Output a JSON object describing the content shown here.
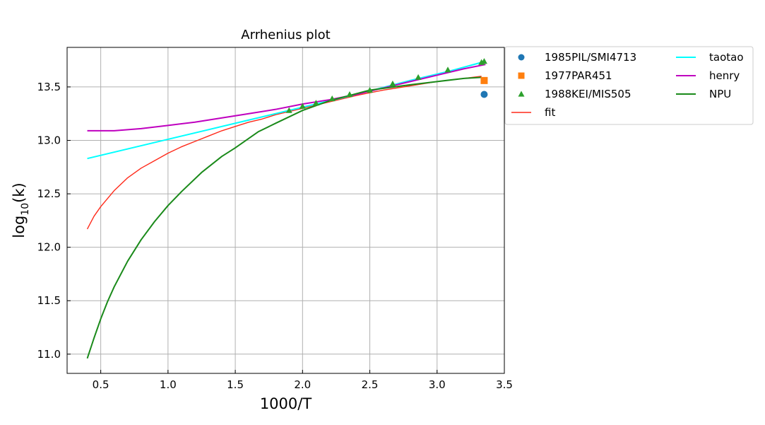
{
  "chart_data": {
    "type": "line",
    "title": "Arrhenius plot",
    "xlabel": "1000/T",
    "ylabel_base": "log",
    "ylabel_sub": "10",
    "ylabel_rest": "(k)",
    "xlim": [
      0.25,
      3.5
    ],
    "ylim": [
      10.82,
      13.87
    ],
    "xticks": [
      0.5,
      1.0,
      1.5,
      2.0,
      2.5,
      3.0,
      3.5
    ],
    "xtick_labels": [
      "0.5",
      "1.0",
      "1.5",
      "2.0",
      "2.5",
      "3.0",
      "3.5"
    ],
    "yticks": [
      11.0,
      11.5,
      12.0,
      12.5,
      13.0,
      13.5
    ],
    "ytick_labels": [
      "11.0",
      "11.5",
      "12.0",
      "12.5",
      "13.0",
      "13.5"
    ],
    "grid": true,
    "legend_placement": "outside-right-top",
    "scatter_series": [
      {
        "name": "1985PIL/SMI4713",
        "marker": "circle",
        "color": "#1f77b4",
        "points": [
          [
            3.35,
            13.43
          ]
        ]
      },
      {
        "name": "1977PAR451",
        "marker": "square",
        "color": "#ff7f0e",
        "points": [
          [
            3.35,
            13.56
          ]
        ]
      },
      {
        "name": "1988KEI/MIS505",
        "marker": "triangle",
        "color": "#2ca02c",
        "points": [
          [
            1.9,
            13.28
          ],
          [
            2.0,
            13.32
          ],
          [
            2.1,
            13.35
          ],
          [
            2.22,
            13.39
          ],
          [
            2.35,
            13.43
          ],
          [
            2.5,
            13.47
          ],
          [
            2.67,
            13.53
          ],
          [
            2.86,
            13.59
          ],
          [
            3.08,
            13.66
          ],
          [
            3.33,
            13.73
          ],
          [
            3.35,
            13.74
          ]
        ]
      }
    ],
    "line_series": [
      {
        "name": "fit",
        "color": "#ff2a1a",
        "width": 1.4,
        "points": [
          [
            0.4,
            12.17
          ],
          [
            0.45,
            12.29
          ],
          [
            0.5,
            12.38
          ],
          [
            0.6,
            12.53
          ],
          [
            0.7,
            12.65
          ],
          [
            0.8,
            12.74
          ],
          [
            0.9,
            12.81
          ],
          [
            1.0,
            12.88
          ],
          [
            1.1,
            12.94
          ],
          [
            1.2,
            12.99
          ],
          [
            1.3,
            13.04
          ],
          [
            1.4,
            13.09
          ],
          [
            1.5,
            13.13
          ],
          [
            1.6,
            13.17
          ],
          [
            1.7,
            13.2
          ],
          [
            1.8,
            13.24
          ],
          [
            1.9,
            13.27
          ],
          [
            2.0,
            13.3
          ],
          [
            2.2,
            13.36
          ],
          [
            2.4,
            13.42
          ],
          [
            2.6,
            13.47
          ],
          [
            2.8,
            13.51
          ],
          [
            3.0,
            13.55
          ],
          [
            3.2,
            13.58
          ],
          [
            3.33,
            13.6
          ]
        ]
      },
      {
        "name": "taotao",
        "color": "#00ffff",
        "width": 2,
        "points": [
          [
            0.4,
            12.83
          ],
          [
            0.8,
            12.95
          ],
          [
            1.2,
            13.07
          ],
          [
            1.6,
            13.19
          ],
          [
            2.0,
            13.31
          ],
          [
            2.4,
            13.43
          ],
          [
            2.8,
            13.56
          ],
          [
            3.1,
            13.65
          ],
          [
            3.36,
            13.74
          ]
        ]
      },
      {
        "name": "henry",
        "color": "#bf00bf",
        "width": 2,
        "points": [
          [
            0.4,
            13.09
          ],
          [
            0.5,
            13.09
          ],
          [
            0.6,
            13.09
          ],
          [
            0.8,
            13.11
          ],
          [
            1.0,
            13.14
          ],
          [
            1.2,
            13.17
          ],
          [
            1.4,
            13.21
          ],
          [
            1.6,
            13.25
          ],
          [
            1.8,
            13.29
          ],
          [
            2.0,
            13.34
          ],
          [
            2.2,
            13.38
          ],
          [
            2.4,
            13.43
          ],
          [
            2.6,
            13.49
          ],
          [
            2.8,
            13.55
          ],
          [
            3.0,
            13.61
          ],
          [
            3.2,
            13.67
          ],
          [
            3.36,
            13.71
          ]
        ]
      },
      {
        "name": "NPU",
        "color": "#1a8a1a",
        "width": 2,
        "points": [
          [
            0.4,
            10.96
          ],
          [
            0.45,
            11.15
          ],
          [
            0.5,
            11.33
          ],
          [
            0.55,
            11.49
          ],
          [
            0.6,
            11.63
          ],
          [
            0.7,
            11.87
          ],
          [
            0.8,
            12.07
          ],
          [
            0.9,
            12.24
          ],
          [
            1.0,
            12.39
          ],
          [
            1.1,
            12.52
          ],
          [
            1.25,
            12.7
          ],
          [
            1.4,
            12.85
          ],
          [
            1.5,
            12.93
          ],
          [
            1.67,
            13.08
          ],
          [
            1.8,
            13.16
          ],
          [
            2.0,
            13.28
          ],
          [
            2.2,
            13.37
          ],
          [
            2.5,
            13.47
          ],
          [
            2.8,
            13.52
          ],
          [
            3.0,
            13.55
          ],
          [
            3.2,
            13.58
          ],
          [
            3.33,
            13.59
          ]
        ]
      }
    ],
    "legend": {
      "col1": [
        {
          "label": "1985PIL/SMI4713",
          "kind": "marker",
          "marker": "circle",
          "color": "#1f77b4"
        },
        {
          "label": "1977PAR451",
          "kind": "marker",
          "marker": "square",
          "color": "#ff7f0e"
        },
        {
          "label": "1988KEI/MIS505",
          "kind": "marker",
          "marker": "triangle",
          "color": "#2ca02c"
        },
        {
          "label": "fit",
          "kind": "line",
          "color": "#ff2a1a"
        }
      ],
      "col2": [
        {
          "label": "taotao",
          "kind": "line",
          "color": "#00ffff"
        },
        {
          "label": "henry",
          "kind": "line",
          "color": "#bf00bf"
        },
        {
          "label": "NPU",
          "kind": "line",
          "color": "#1a8a1a"
        }
      ]
    }
  }
}
